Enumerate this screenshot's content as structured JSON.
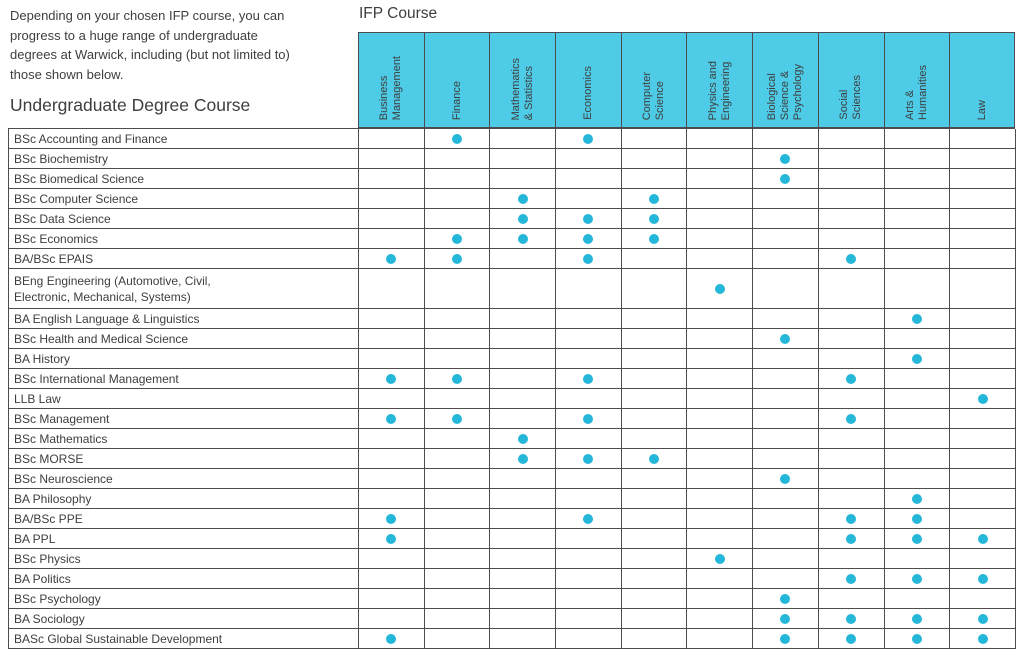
{
  "intro_text": "Depending on your chosen IFP course, you can\nprogress to a huge range of undergraduate\ndegrees at Warwick, including (but not limited to)\nthose shown below.",
  "row_axis_title": "Undergraduate Degree Course",
  "column_axis_title": "IFP Course",
  "colors": {
    "header_fill": "#4ecbe6",
    "dot": "#25b7d9",
    "grid_line": "#4d4d4f",
    "text": "#3e3e3e"
  },
  "chart_data": {
    "type": "table",
    "title": "IFP Course progression matrix",
    "columns": [
      "Business\nManagement",
      "Finance",
      "Mathematics\n& Statistics",
      "Economics",
      "Computer\nScience",
      "Physics and\nEngineering",
      "Biological\nScience &\nPsychology",
      "Social\nSciences",
      "Arts &\nHumanities",
      "Law"
    ],
    "rows": [
      {
        "label": "BSc Accounting and Finance",
        "marks": [
          0,
          1,
          0,
          1,
          0,
          0,
          0,
          0,
          0,
          0
        ]
      },
      {
        "label": "BSc Biochemistry",
        "marks": [
          0,
          0,
          0,
          0,
          0,
          0,
          1,
          0,
          0,
          0
        ]
      },
      {
        "label": "BSc Biomedical Science",
        "marks": [
          0,
          0,
          0,
          0,
          0,
          0,
          1,
          0,
          0,
          0
        ]
      },
      {
        "label": "BSc Computer Science",
        "marks": [
          0,
          0,
          1,
          0,
          1,
          0,
          0,
          0,
          0,
          0
        ]
      },
      {
        "label": "BSc Data Science",
        "marks": [
          0,
          0,
          1,
          1,
          1,
          0,
          0,
          0,
          0,
          0
        ]
      },
      {
        "label": "BSc Economics",
        "marks": [
          0,
          1,
          1,
          1,
          1,
          0,
          0,
          0,
          0,
          0
        ]
      },
      {
        "label": "BA/BSc EPAIS",
        "marks": [
          1,
          1,
          0,
          1,
          0,
          0,
          0,
          1,
          0,
          0
        ]
      },
      {
        "label": "BEng Engineering (Automotive, Civil,\nElectronic, Mechanical, Systems)",
        "marks": [
          0,
          0,
          0,
          0,
          0,
          1,
          0,
          0,
          0,
          0
        ],
        "tall": true
      },
      {
        "label": "BA English Language & Linguistics",
        "marks": [
          0,
          0,
          0,
          0,
          0,
          0,
          0,
          0,
          1,
          0
        ]
      },
      {
        "label": "BSc Health and Medical Science",
        "marks": [
          0,
          0,
          0,
          0,
          0,
          0,
          1,
          0,
          0,
          0
        ]
      },
      {
        "label": "BA History",
        "marks": [
          0,
          0,
          0,
          0,
          0,
          0,
          0,
          0,
          1,
          0
        ]
      },
      {
        "label": "BSc International Management",
        "marks": [
          1,
          1,
          0,
          1,
          0,
          0,
          0,
          1,
          0,
          0
        ]
      },
      {
        "label": "LLB Law",
        "marks": [
          0,
          0,
          0,
          0,
          0,
          0,
          0,
          0,
          0,
          1
        ]
      },
      {
        "label": "BSc Management",
        "marks": [
          1,
          1,
          0,
          1,
          0,
          0,
          0,
          1,
          0,
          0
        ]
      },
      {
        "label": "BSc Mathematics",
        "marks": [
          0,
          0,
          1,
          0,
          0,
          0,
          0,
          0,
          0,
          0
        ]
      },
      {
        "label": "BSc MORSE",
        "marks": [
          0,
          0,
          1,
          1,
          1,
          0,
          0,
          0,
          0,
          0
        ]
      },
      {
        "label": "BSc Neuroscience",
        "marks": [
          0,
          0,
          0,
          0,
          0,
          0,
          1,
          0,
          0,
          0
        ]
      },
      {
        "label": "BA Philosophy",
        "marks": [
          0,
          0,
          0,
          0,
          0,
          0,
          0,
          0,
          1,
          0
        ]
      },
      {
        "label": "BA/BSc PPE",
        "marks": [
          1,
          0,
          0,
          1,
          0,
          0,
          0,
          1,
          1,
          0
        ]
      },
      {
        "label": "BA PPL",
        "marks": [
          1,
          0,
          0,
          0,
          0,
          0,
          0,
          1,
          1,
          1
        ]
      },
      {
        "label": "BSc Physics",
        "marks": [
          0,
          0,
          0,
          0,
          0,
          1,
          0,
          0,
          0,
          0
        ]
      },
      {
        "label": "BA Politics",
        "marks": [
          0,
          0,
          0,
          0,
          0,
          0,
          0,
          1,
          1,
          1
        ]
      },
      {
        "label": "BSc Psychology",
        "marks": [
          0,
          0,
          0,
          0,
          0,
          0,
          1,
          0,
          0,
          0
        ]
      },
      {
        "label": "BA Sociology",
        "marks": [
          0,
          0,
          0,
          0,
          0,
          0,
          1,
          1,
          1,
          1
        ]
      },
      {
        "label": "BASc Global Sustainable Development",
        "marks": [
          1,
          0,
          0,
          0,
          0,
          0,
          1,
          1,
          1,
          1
        ]
      }
    ]
  }
}
